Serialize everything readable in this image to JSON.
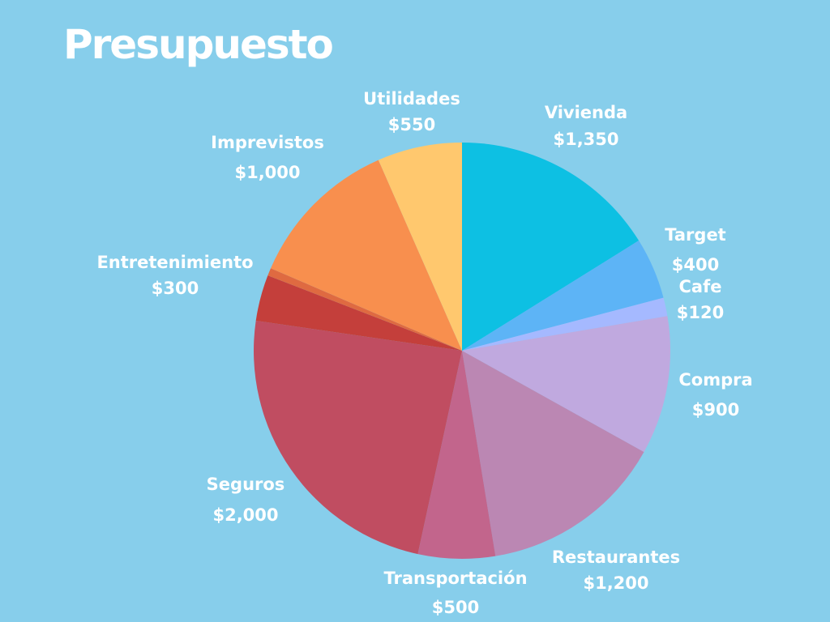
{
  "title": "Presupuesto",
  "chart_data": {
    "type": "pie",
    "title": "Presupuesto",
    "slices": [
      {
        "label": "Vivienda",
        "value_label": "$1,350",
        "value": 1350,
        "color": "#0dc0e3"
      },
      {
        "label": "Target",
        "value_label": "$400",
        "value": 400,
        "color": "#5db4f6"
      },
      {
        "label": "Cafe",
        "value_label": "$120",
        "value": 120,
        "color": "#a5b9ff"
      },
      {
        "label": "Compra",
        "value_label": "$900",
        "value": 900,
        "color": "#c0a9df"
      },
      {
        "label": "Restaurantes",
        "value_label": "$1,200",
        "value": 1200,
        "color": "#bb87b3"
      },
      {
        "label": "Transportación",
        "value_label": "$500",
        "value": 500,
        "color": "#c2658c"
      },
      {
        "label": "Seguros",
        "value_label": "$2,000",
        "value": 2000,
        "color": "#c04d61"
      },
      {
        "label": "Entretenimiento",
        "value_label": "$300",
        "value": 300,
        "color": "#c43f3b"
      },
      {
        "label": "",
        "value_label": "",
        "value": 50,
        "color": "#df6a41"
      },
      {
        "label": "Imprevistos",
        "value_label": "$1,000",
        "value": 1000,
        "color": "#f88f4e"
      },
      {
        "label": "Utilidades",
        "value_label": "$550",
        "value": 550,
        "color": "#ffc86e"
      }
    ]
  }
}
